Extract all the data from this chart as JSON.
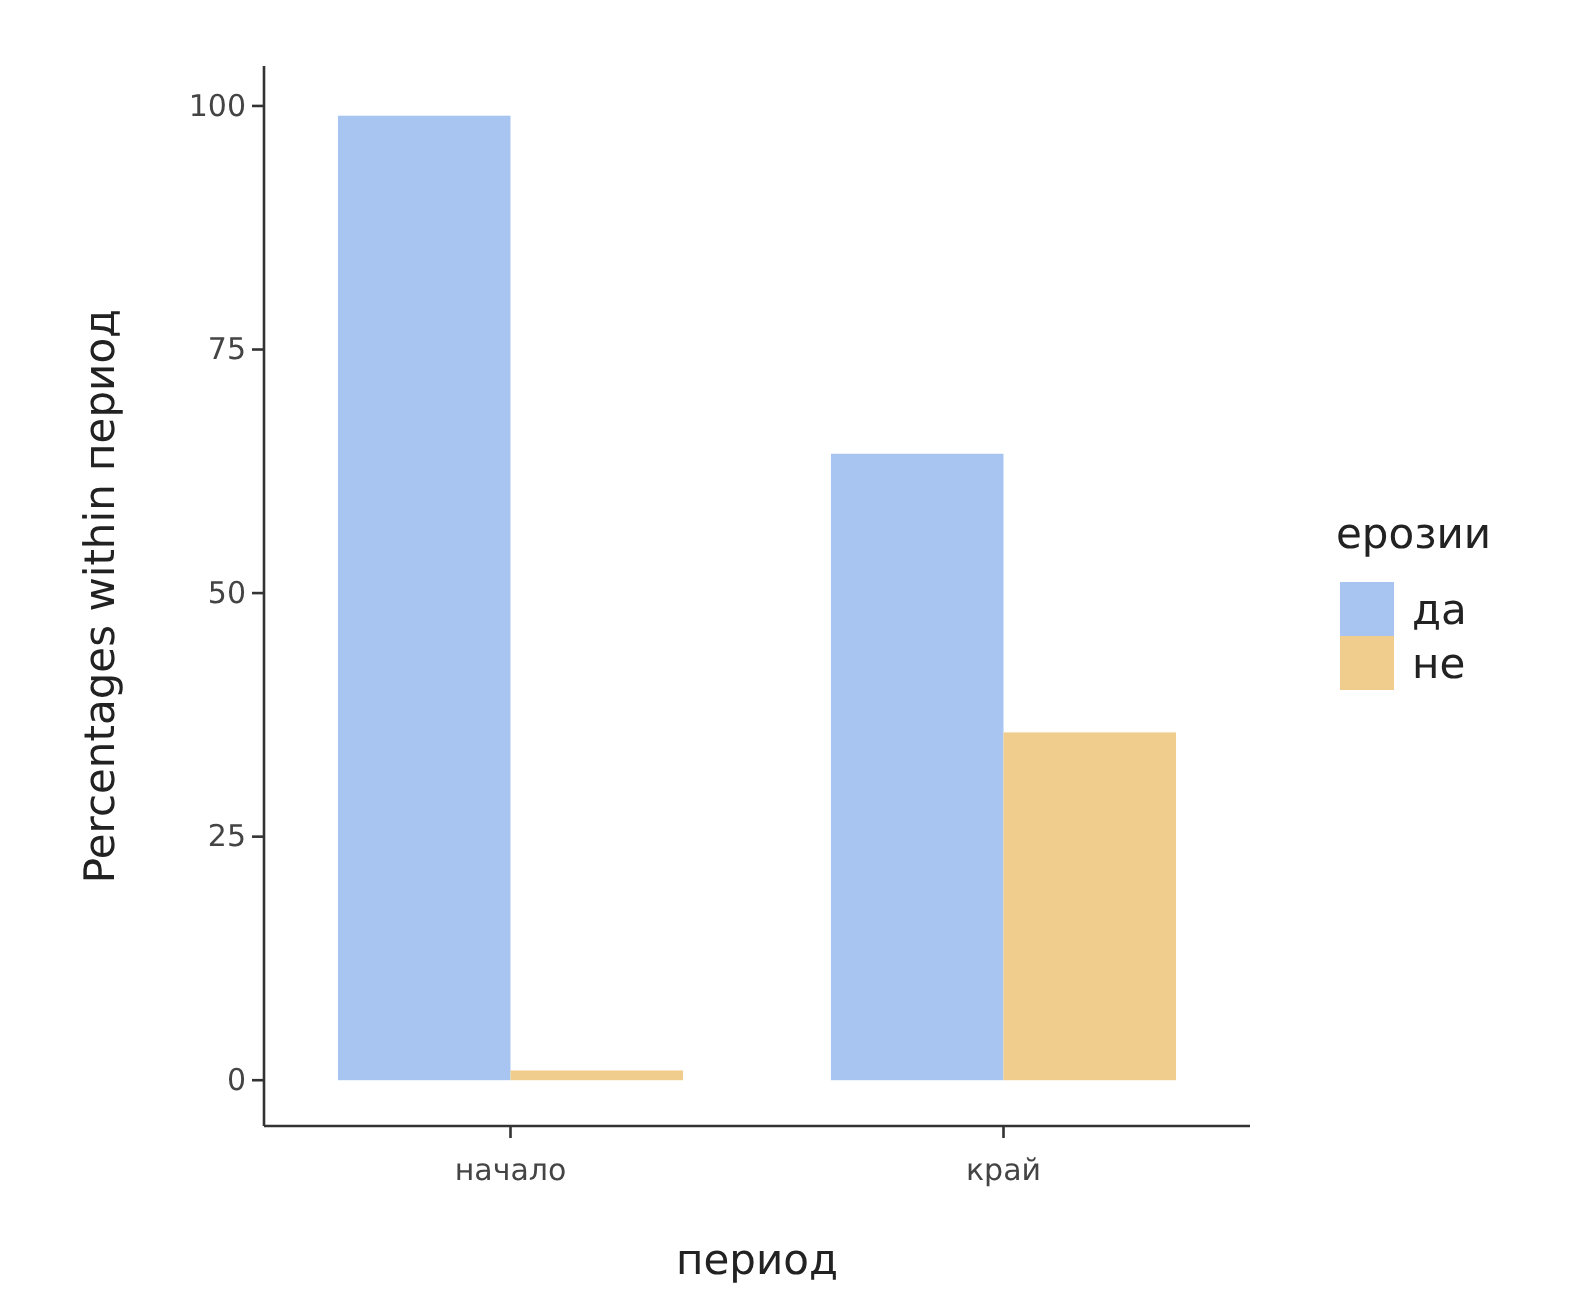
{
  "chart_data": {
    "type": "bar",
    "xlabel": "период",
    "ylabel": "Percentages within период",
    "legend_title": "ерозии",
    "categories": [
      "начало",
      "край"
    ],
    "series": [
      {
        "name": "да",
        "color": "#a8c5f2",
        "values": [
          99,
          64.3
        ]
      },
      {
        "name": "не",
        "color": "#f0cd8c",
        "values": [
          1,
          35.7
        ]
      }
    ],
    "ylim": [
      -4.7,
      104.1
    ],
    "yticks": [
      0,
      25,
      50,
      75,
      100
    ],
    "grid": false,
    "legend": "right"
  }
}
